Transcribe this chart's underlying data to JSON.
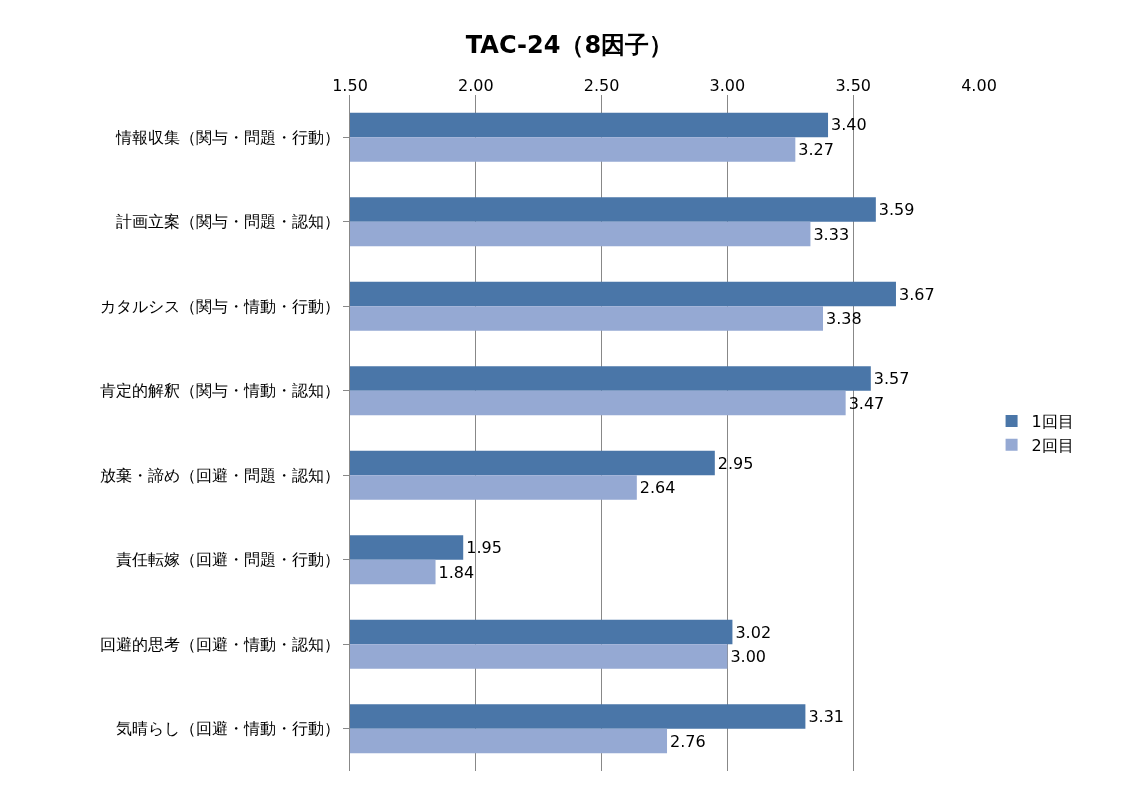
{
  "chart_data": {
    "type": "bar",
    "title": "TAC-24（8因子）",
    "orientation": "horizontal",
    "categories": [
      "情報収集（関与・問題・行動）",
      "計画立案（関与・問題・認知）",
      "カタルシス（関与・情動・行動）",
      "肯定的解釈（関与・情動・認知）",
      "放棄・諦め（回避・問題・認知）",
      "責任転嫁（回避・問題・行動）",
      "回避的思考（回避・情動・認知）",
      "気晴らし（回避・情動・行動）"
    ],
    "series": [
      {
        "name": "1回目",
        "color": "#4a76a8",
        "values": [
          3.4,
          3.59,
          3.67,
          3.57,
          2.95,
          1.95,
          3.02,
          3.31
        ],
        "value_labels": [
          "3.40",
          "3.59",
          "3.67",
          "3.57",
          "2.95",
          "1.95",
          "3.02",
          "3.31"
        ]
      },
      {
        "name": "2回目",
        "color": "#95a9d3",
        "values": [
          3.27,
          3.33,
          3.38,
          3.47,
          2.64,
          1.84,
          3.0,
          2.76
        ],
        "value_labels": [
          "3.27",
          "3.33",
          "3.38",
          "3.47",
          "2.64",
          "1.84",
          "3.00",
          "2.76"
        ]
      }
    ],
    "xlim": [
      1.5,
      4.0
    ],
    "xticks": [
      {
        "value": 1.5,
        "label": "1.50"
      },
      {
        "value": 2.0,
        "label": "2.00"
      },
      {
        "value": 2.5,
        "label": "2.50"
      },
      {
        "value": 3.0,
        "label": "3.00"
      },
      {
        "value": 3.5,
        "label": "3.50"
      },
      {
        "value": 4.0,
        "label": "4.00"
      }
    ],
    "grid": "x",
    "legend": "right"
  }
}
